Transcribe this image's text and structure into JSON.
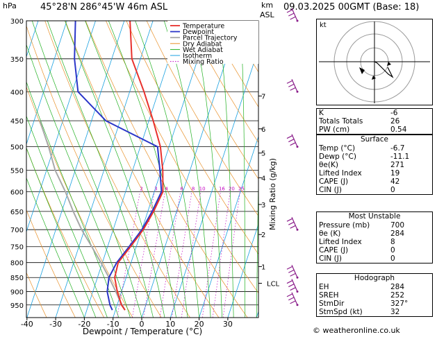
{
  "header": {
    "left": "45°28'N  286°45'W  46m  ASL",
    "right": "09.03.2025  00GMT  (Base: 18)",
    "hpa": "hPa",
    "km": "km",
    "asl": "ASL"
  },
  "axes": {
    "xlabel": "Dewpoint / Temperature (°C)",
    "ylabel_right": "Mixing Ratio (g/kg)",
    "pressure_ticks": [
      "300",
      "350",
      "400",
      "450",
      "500",
      "550",
      "600",
      "650",
      "700",
      "750",
      "800",
      "850",
      "900",
      "950"
    ],
    "temp_ticks": [
      "-40",
      "-30",
      "-20",
      "-10",
      "0",
      "10",
      "20",
      "30"
    ],
    "km_ticks": [
      "7",
      "6",
      "5",
      "4",
      "3",
      "2",
      "1",
      "LCL"
    ],
    "mixing_ratio_labels": [
      "2",
      "3",
      "4",
      "6",
      "8",
      "10",
      "16",
      "20",
      "25"
    ]
  },
  "legend": [
    "Temperature",
    "Dewpoint",
    "Parcel Trajectory",
    "Dry Adiabat",
    "Wet Adiabat",
    "Isotherm",
    "Mixing Ratio"
  ],
  "colors": {
    "temperature": "#e8302c",
    "dewpoint": "#2a35c8",
    "parcel": "#a8a8a8",
    "dry": "#e89028",
    "wet": "#20b020",
    "isotherm": "#18a0e0",
    "mixing": "#c000c0",
    "wind": "#8a1c8a"
  },
  "chart_data": {
    "type": "line",
    "ylog": true,
    "xlim": [
      -40,
      40
    ],
    "ylim": [
      300,
      1000
    ],
    "temperature": [
      [
        970,
        -6.7
      ],
      [
        950,
        -8.5
      ],
      [
        900,
        -11.5
      ],
      [
        850,
        -14
      ],
      [
        800,
        -14.5
      ],
      [
        750,
        -12
      ],
      [
        700,
        -9.5
      ],
      [
        650,
        -8
      ],
      [
        600,
        -7
      ],
      [
        550,
        -9.5
      ],
      [
        500,
        -13
      ],
      [
        450,
        -18.5
      ],
      [
        400,
        -25
      ],
      [
        350,
        -33
      ],
      [
        300,
        -38
      ]
    ],
    "dewpoint": [
      [
        970,
        -11.1
      ],
      [
        950,
        -12.5
      ],
      [
        900,
        -15
      ],
      [
        850,
        -16
      ],
      [
        800,
        -15
      ],
      [
        750,
        -12.5
      ],
      [
        700,
        -10
      ],
      [
        650,
        -8.5
      ],
      [
        600,
        -7.5
      ],
      [
        550,
        -10.5
      ],
      [
        500,
        -14
      ],
      [
        450,
        -35
      ],
      [
        400,
        -48
      ],
      [
        350,
        -53
      ],
      [
        300,
        -57
      ]
    ],
    "parcel": [
      [
        970,
        -6.7
      ],
      [
        935,
        -9.5
      ],
      [
        900,
        -12
      ],
      [
        850,
        -16
      ],
      [
        800,
        -20.5
      ],
      [
        750,
        -25.5
      ],
      [
        700,
        -31
      ],
      [
        650,
        -36
      ],
      [
        600,
        -41
      ],
      [
        550,
        -47
      ],
      [
        500,
        -52
      ],
      [
        450,
        -58
      ]
    ]
  },
  "wind_barbs": [
    300,
    400,
    500,
    700,
    850,
    900,
    950
  ],
  "hodograph": {
    "label": "kt"
  },
  "indices": [
    [
      "K",
      "-6"
    ],
    [
      "Totals Totals",
      "26"
    ],
    [
      "PW (cm)",
      "0.54"
    ]
  ],
  "surface": {
    "title": "Surface",
    "rows": [
      [
        "Temp (°C)",
        "-6.7"
      ],
      [
        "Dewp (°C)",
        "-11.1"
      ],
      [
        "θe(K)",
        "271"
      ],
      [
        "Lifted Index",
        "19"
      ],
      [
        "CAPE (J)",
        "42"
      ],
      [
        "CIN (J)",
        "0"
      ]
    ]
  },
  "unstable": {
    "title": "Most Unstable",
    "rows": [
      [
        "Pressure (mb)",
        "700"
      ],
      [
        "θe (K)",
        "284"
      ],
      [
        "Lifted Index",
        "8"
      ],
      [
        "CAPE (J)",
        "0"
      ],
      [
        "CIN (J)",
        "0"
      ]
    ]
  },
  "hodo": {
    "title": "Hodograph",
    "rows": [
      [
        "EH",
        "284"
      ],
      [
        "SREH",
        "252"
      ],
      [
        "StmDir",
        "327°"
      ],
      [
        "StmSpd (kt)",
        "32"
      ]
    ]
  },
  "copyright": "© weatheronline.co.uk"
}
